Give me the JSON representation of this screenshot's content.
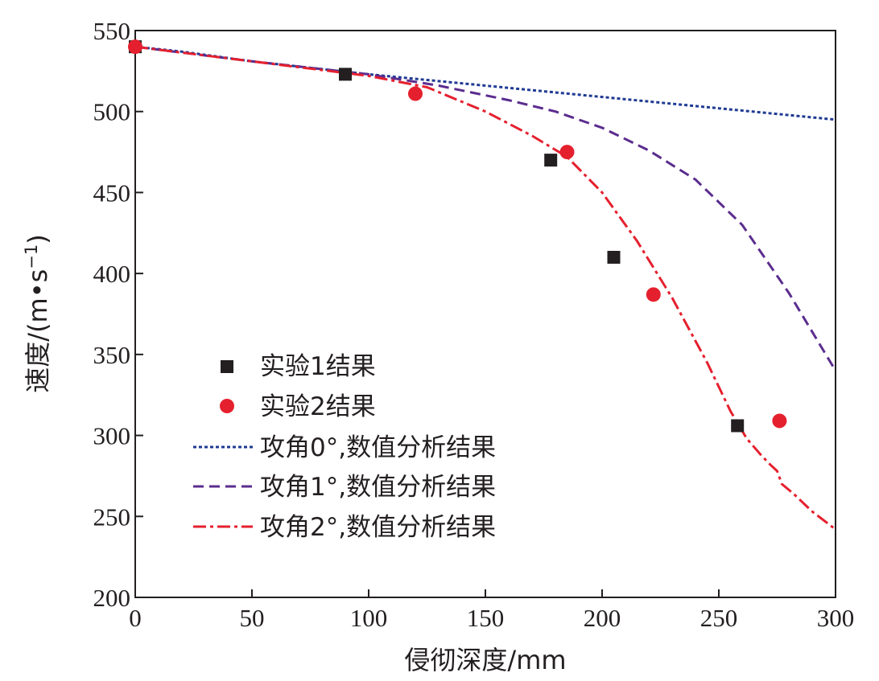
{
  "chart_data": {
    "type": "line",
    "title": "",
    "xlabel": "侵彻深度/mm",
    "ylabel_main": "速度/(m",
    "ylabel_dot": "•",
    "ylabel_s": "s",
    "ylabel_exp": "−1",
    "ylabel_close": ")",
    "xlim": [
      0,
      300
    ],
    "ylim": [
      200,
      550
    ],
    "xticks": [
      "0",
      "50",
      "100",
      "150",
      "200",
      "250",
      "300"
    ],
    "yticks": [
      "200",
      "250",
      "300",
      "350",
      "400",
      "450",
      "500",
      "550"
    ],
    "grid": false,
    "legend_position": "lower-left",
    "series": [
      {
        "name": "实验1结果",
        "kind": "scatter",
        "marker": "square",
        "color": "#231f20",
        "x": [
          0,
          90,
          178,
          205,
          258
        ],
        "y": [
          540,
          523,
          470,
          410,
          306
        ]
      },
      {
        "name": "实验2结果",
        "kind": "scatter",
        "marker": "circle",
        "color": "#e5202e",
        "x": [
          0,
          120,
          185,
          222,
          276
        ],
        "y": [
          540,
          511,
          475,
          387,
          309
        ]
      },
      {
        "name": "攻角0°,数值分析结果",
        "kind": "line",
        "dash": "dotted",
        "color": "#1f3a93",
        "x": [
          0,
          20,
          50,
          100,
          150,
          200,
          250,
          300
        ],
        "y": [
          540,
          537,
          531,
          523,
          516,
          509,
          502,
          495
        ]
      },
      {
        "name": "攻角1°,数值分析结果",
        "kind": "line",
        "dash": "dashed",
        "color": "#5b2d8e",
        "x": [
          0,
          50,
          100,
          130,
          160,
          180,
          200,
          220,
          240,
          260,
          280,
          300
        ],
        "y": [
          540,
          531,
          523,
          516,
          507,
          500,
          490,
          476,
          458,
          430,
          388,
          340
        ]
      },
      {
        "name": "攻角2°,数值分析结果",
        "kind": "line",
        "dash": "dashdot",
        "color": "#e5202e",
        "x": [
          0,
          50,
          100,
          125,
          150,
          170,
          185,
          200,
          215,
          230,
          245,
          255,
          262,
          268,
          272,
          275,
          277,
          282,
          290,
          300
        ],
        "y": [
          540,
          531,
          522,
          515,
          500,
          485,
          472,
          450,
          420,
          385,
          345,
          315,
          298,
          288,
          282,
          278,
          270,
          264,
          253,
          242
        ]
      }
    ]
  }
}
